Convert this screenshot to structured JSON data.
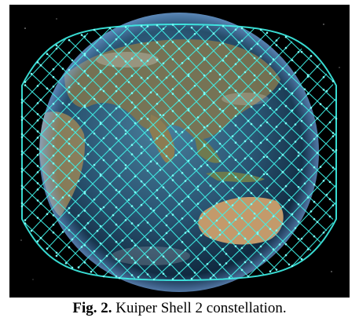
{
  "figure": {
    "caption_label": "Fig. 2.",
    "caption_text": " Kuiper Shell 2 constellation.",
    "image_subject": "earth-globe-with-satellite-mesh"
  },
  "colors": {
    "background": "#000000",
    "ocean_dark": "#0c2a45",
    "ocean_light": "#3d6f8e",
    "land": "#8a7a55",
    "land_desert": "#c9a273",
    "satellite_mesh": "#3ff2e8"
  }
}
